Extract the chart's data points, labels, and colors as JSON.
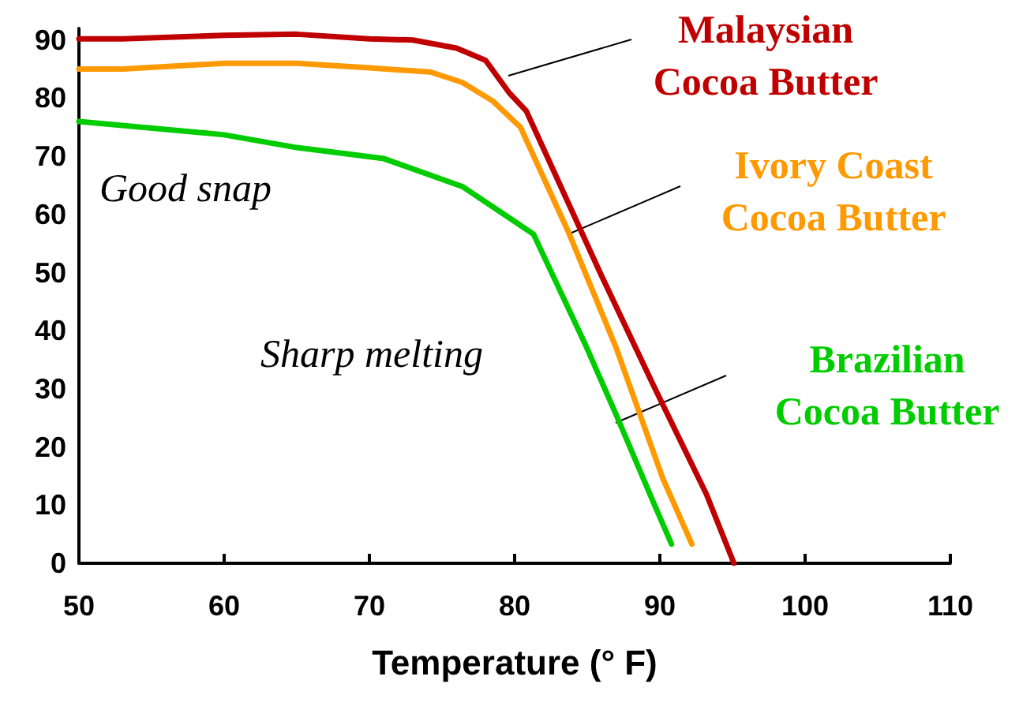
{
  "chart_data": {
    "type": "line",
    "xlabel": "Temperature (° F)",
    "xlim": [
      50,
      110
    ],
    "xticks": [
      50,
      60,
      70,
      80,
      90,
      100,
      110
    ],
    "ylim": [
      0,
      92
    ],
    "yticks": [
      0,
      10,
      20,
      30,
      40,
      50,
      60,
      70,
      80,
      90
    ],
    "grid": false,
    "legend": false,
    "marker": "none",
    "line_style": "solid",
    "annotations": [
      "Good snap",
      "Sharp melting"
    ],
    "series": [
      {
        "name": "Malaysian Cocoa Butter",
        "color": "#c00000",
        "x": [
          50,
          53,
          60,
          65,
          70,
          73,
          76,
          78,
          79.6,
          80.8,
          82.3,
          85.9,
          89.5,
          93.2,
          95.1
        ],
        "values": [
          90.2,
          90.2,
          90.8,
          91,
          90.2,
          90,
          88.6,
          86.5,
          81,
          77.8,
          69.6,
          49.9,
          30.9,
          11.9,
          0
        ]
      },
      {
        "name": "Ivory Coast Cocoa Butter",
        "color": "#ff9900",
        "x": [
          50,
          53,
          60,
          65,
          70,
          74.2,
          76.4,
          78.5,
          80.4,
          83.7,
          87,
          90.2,
          92.2
        ],
        "values": [
          85,
          85,
          86,
          86,
          85.2,
          84.5,
          82.7,
          79.5,
          75,
          57,
          37,
          14.6,
          3.3
        ]
      },
      {
        "name": "Brazilian Cocoa Butter",
        "color": "#00cc00",
        "x": [
          50,
          60,
          65,
          71,
          76.4,
          79.7,
          81.3,
          84.8,
          87,
          89.5,
          90.8
        ],
        "values": [
          76,
          73.7,
          71.5,
          69.6,
          64.8,
          59.3,
          56.6,
          38,
          25.5,
          10.8,
          3.3
        ]
      }
    ]
  }
}
